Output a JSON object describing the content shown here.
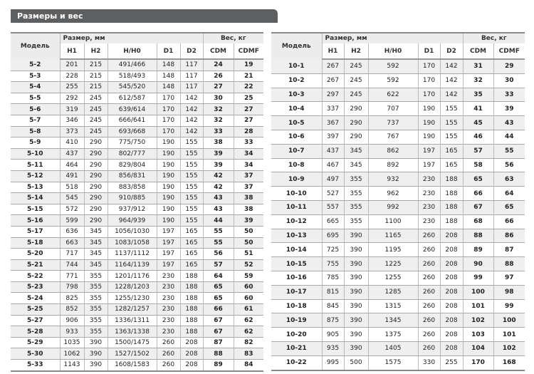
{
  "title": "Размеры и вес",
  "headers": {
    "model": "Модель",
    "size_group": "Размер, мм",
    "weight_group": "Вес, кг",
    "columns": [
      "H1",
      "H2",
      "H/H0",
      "D1",
      "D2",
      "CDM",
      "CDMF"
    ]
  },
  "tables": [
    {
      "rows": [
        [
          "5-2",
          "201",
          "215",
          "491/466",
          "148",
          "117",
          "24",
          "19"
        ],
        [
          "5-3",
          "228",
          "215",
          "518/493",
          "148",
          "117",
          "26",
          "21"
        ],
        [
          "5-4",
          "255",
          "215",
          "545/520",
          "148",
          "117",
          "27",
          "22"
        ],
        [
          "5-5",
          "292",
          "245",
          "612/587",
          "170",
          "142",
          "30",
          "25"
        ],
        [
          "5-6",
          "319",
          "245",
          "639/614",
          "170",
          "142",
          "32",
          "27"
        ],
        [
          "5-7",
          "346",
          "245",
          "666/641",
          "170",
          "142",
          "32",
          "27"
        ],
        [
          "5-8",
          "373",
          "245",
          "693/668",
          "170",
          "142",
          "33",
          "28"
        ],
        [
          "5-9",
          "410",
          "290",
          "775/750",
          "190",
          "155",
          "38",
          "33"
        ],
        [
          "5-10",
          "437",
          "290",
          "802/777",
          "190",
          "155",
          "39",
          "34"
        ],
        [
          "5-11",
          "464",
          "290",
          "829/804",
          "190",
          "155",
          "39",
          "34"
        ],
        [
          "5-12",
          "491",
          "290",
          "856/831",
          "190",
          "155",
          "42",
          "37"
        ],
        [
          "5-13",
          "518",
          "290",
          "883/858",
          "190",
          "155",
          "42",
          "37"
        ],
        [
          "5-14",
          "545",
          "290",
          "910/885",
          "190",
          "155",
          "43",
          "38"
        ],
        [
          "5-15",
          "572",
          "290",
          "937/912",
          "190",
          "155",
          "43",
          "38"
        ],
        [
          "5-16",
          "599",
          "290",
          "964/939",
          "190",
          "155",
          "44",
          "39"
        ],
        [
          "5-17",
          "636",
          "345",
          "1056/1030",
          "197",
          "165",
          "55",
          "50"
        ],
        [
          "5-18",
          "663",
          "345",
          "1083/1058",
          "197",
          "165",
          "55",
          "50"
        ],
        [
          "5-20",
          "717",
          "345",
          "1137/1112",
          "197",
          "165",
          "56",
          "51"
        ],
        [
          "5-21",
          "744",
          "345",
          "1164/1139",
          "197",
          "165",
          "57",
          "52"
        ],
        [
          "5-22",
          "771",
          "355",
          "1201/1176",
          "230",
          "188",
          "64",
          "59"
        ],
        [
          "5-23",
          "798",
          "355",
          "1228/1203",
          "230",
          "188",
          "65",
          "60"
        ],
        [
          "5-24",
          "825",
          "355",
          "1255/1230",
          "230",
          "188",
          "65",
          "60"
        ],
        [
          "5-25",
          "852",
          "355",
          "1282/1257",
          "230",
          "188",
          "66",
          "61"
        ],
        [
          "5-27",
          "906",
          "355",
          "1336/1311",
          "230",
          "188",
          "67",
          "62"
        ],
        [
          "5-28",
          "933",
          "355",
          "1363/1338",
          "230",
          "188",
          "67",
          "62"
        ],
        [
          "5-29",
          "1035",
          "390",
          "1500/1475",
          "260",
          "208",
          "87",
          "82"
        ],
        [
          "5-30",
          "1062",
          "390",
          "1527/1502",
          "260",
          "208",
          "88",
          "83"
        ],
        [
          "5-33",
          "1143",
          "390",
          "1608/1583",
          "260",
          "208",
          "89",
          "84"
        ]
      ]
    },
    {
      "rows": [
        [
          "10-1",
          "267",
          "245",
          "592",
          "170",
          "142",
          "31",
          "29"
        ],
        [
          "10-2",
          "267",
          "245",
          "592",
          "170",
          "142",
          "32",
          "30"
        ],
        [
          "10-3",
          "297",
          "245",
          "622",
          "170",
          "142",
          "35",
          "33"
        ],
        [
          "10-4",
          "337",
          "290",
          "707",
          "190",
          "155",
          "41",
          "39"
        ],
        [
          "10-5",
          "367",
          "290",
          "737",
          "190",
          "155",
          "45",
          "43"
        ],
        [
          "10-6",
          "397",
          "290",
          "767",
          "190",
          "155",
          "46",
          "44"
        ],
        [
          "10-7",
          "437",
          "345",
          "862",
          "197",
          "165",
          "57",
          "55"
        ],
        [
          "10-8",
          "467",
          "345",
          "892",
          "197",
          "165",
          "58",
          "56"
        ],
        [
          "10-9",
          "497",
          "355",
          "932",
          "230",
          "188",
          "65",
          "63"
        ],
        [
          "10-10",
          "527",
          "355",
          "962",
          "230",
          "188",
          "66",
          "64"
        ],
        [
          "10-11",
          "557",
          "355",
          "992",
          "230",
          "188",
          "67",
          "65"
        ],
        [
          "10-12",
          "665",
          "355",
          "1100",
          "230",
          "188",
          "68",
          "66"
        ],
        [
          "10-13",
          "695",
          "390",
          "1165",
          "260",
          "208",
          "88",
          "86"
        ],
        [
          "10-14",
          "725",
          "390",
          "1195",
          "260",
          "208",
          "89",
          "87"
        ],
        [
          "10-15",
          "755",
          "390",
          "1225",
          "260",
          "208",
          "90",
          "88"
        ],
        [
          "10-16",
          "785",
          "390",
          "1255",
          "260",
          "208",
          "99",
          "97"
        ],
        [
          "10-17",
          "815",
          "390",
          "1285",
          "260",
          "208",
          "100",
          "98"
        ],
        [
          "10-18",
          "845",
          "390",
          "1315",
          "260",
          "208",
          "101",
          "99"
        ],
        [
          "10-19",
          "875",
          "390",
          "1345",
          "260",
          "208",
          "102",
          "100"
        ],
        [
          "10-20",
          "905",
          "390",
          "1375",
          "260",
          "208",
          "103",
          "101"
        ],
        [
          "10-21",
          "935",
          "390",
          "1405",
          "260",
          "208",
          "104",
          "102"
        ],
        [
          "10-22",
          "995",
          "500",
          "1575",
          "330",
          "255",
          "170",
          "168"
        ]
      ]
    }
  ]
}
